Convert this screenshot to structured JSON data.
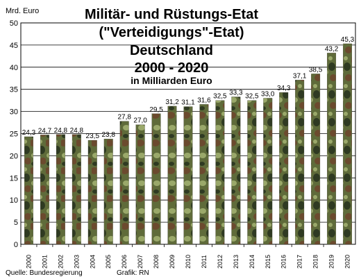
{
  "chart_data": {
    "type": "bar",
    "title_lines": [
      "Militär- und Rüstungs-Etat",
      "(\"Verteidigungs\"-Etat)",
      "Deutschland",
      "2000 - 2020"
    ],
    "subtitle": "in Milliarden Euro",
    "ylabel": "Mrd. Euro",
    "ylim": [
      0,
      50
    ],
    "yticks": [
      0,
      5,
      10,
      15,
      20,
      25,
      30,
      35,
      40,
      45,
      50
    ],
    "grid": true,
    "categories": [
      "2000",
      "2001",
      "2002",
      "2003",
      "2004",
      "2005",
      "2006",
      "2007",
      "2008",
      "2009",
      "2010",
      "2011",
      "2012",
      "2013",
      "2014",
      "2015",
      "2016",
      "2017",
      "2018",
      "2019",
      "2020"
    ],
    "values": [
      24.3,
      24.7,
      24.8,
      24.8,
      23.5,
      23.8,
      27.8,
      27.0,
      29.5,
      31.2,
      31.1,
      31.6,
      32.5,
      33.3,
      32.5,
      33.0,
      34.3,
      37.1,
      38.5,
      43.2,
      45.3
    ],
    "value_labels": [
      "24,3",
      "24,7",
      "24,8",
      "24,8",
      "23,5",
      "23,8",
      "27,8",
      "27,0",
      "29,5",
      "31,2",
      "31,1",
      "31,6",
      "32,5",
      "33,3",
      "32,5",
      "33,0",
      "34,3",
      "37,1",
      "38,5",
      "43,2",
      "45,3"
    ],
    "bar_fill": "flecktarn camouflage"
  },
  "footer": {
    "source": "Quelle: Bundesregierung",
    "credit": "Grafik: RN"
  },
  "colors": {
    "background": "#ffffff",
    "grid": "#000000",
    "camo_base": "#5f6b3a",
    "camo_dark": "#2f3a22",
    "camo_brown": "#6b4a2e",
    "camo_light": "#9aa86a"
  }
}
